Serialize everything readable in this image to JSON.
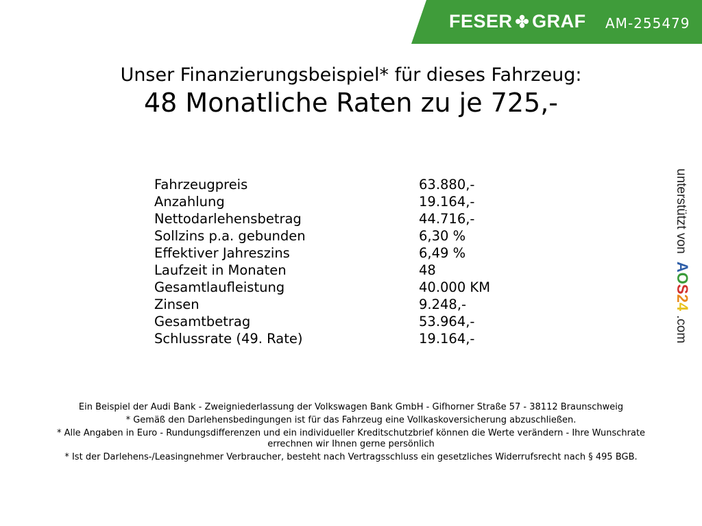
{
  "header": {
    "brand_left": "FESER",
    "brand_right": "GRAF",
    "vehicle_code": "AM-255479",
    "brand_color": "#3f9c3a"
  },
  "title": {
    "line1": "Unser Finanzierungsbeispiel* für dieses Fahrzeug:",
    "line2": "48 Monatliche Raten zu je 725,-"
  },
  "rows": [
    {
      "label": "Fahrzeugpreis",
      "value": "63.880,-"
    },
    {
      "label": "Anzahlung",
      "value": "19.164,-"
    },
    {
      "label": "Nettodarlehensbetrag",
      "value": "44.716,-"
    },
    {
      "label": "Sollzins p.a. gebunden",
      "value": "6,30 %"
    },
    {
      "label": "Effektiver Jahreszins",
      "value": "6,49 %"
    },
    {
      "label": "Laufzeit in Monaten",
      "value": "48"
    },
    {
      "label": "Gesamtlaufleistung",
      "value": "40.000 KM"
    },
    {
      "label": "Zinsen",
      "value": "9.248,-"
    },
    {
      "label": "Gesamtbetrag",
      "value": "53.964,-"
    },
    {
      "label": "Schlussrate (49. Rate)",
      "value": "19.164,-"
    }
  ],
  "footer": [
    "Ein Beispiel der Audi Bank - Zweigniederlassung der Volkswagen Bank GmbH - Gifhorner Straße 57 - 38112 Braunschweig",
    "* Gemäß den Darlehensbedingungen ist für das Fahrzeug eine Vollkaskoversicherung abzuschließen.",
    "* Alle Angaben in Euro - Rundungsdifferenzen und ein individueller Kreditschutzbrief können die Werte verändern - Ihre Wunschrate errechnen wir Ihnen gerne persönlich",
    "* Ist der Darlehens-/Leasingnehmer Verbraucher, besteht nach Vertragsschluss ein gesetzliches Widerrufsrecht nach § 495 BGB."
  ],
  "side": {
    "prefix": "unterstützt von",
    "logo": "AOS24",
    "suffix": ".com"
  }
}
